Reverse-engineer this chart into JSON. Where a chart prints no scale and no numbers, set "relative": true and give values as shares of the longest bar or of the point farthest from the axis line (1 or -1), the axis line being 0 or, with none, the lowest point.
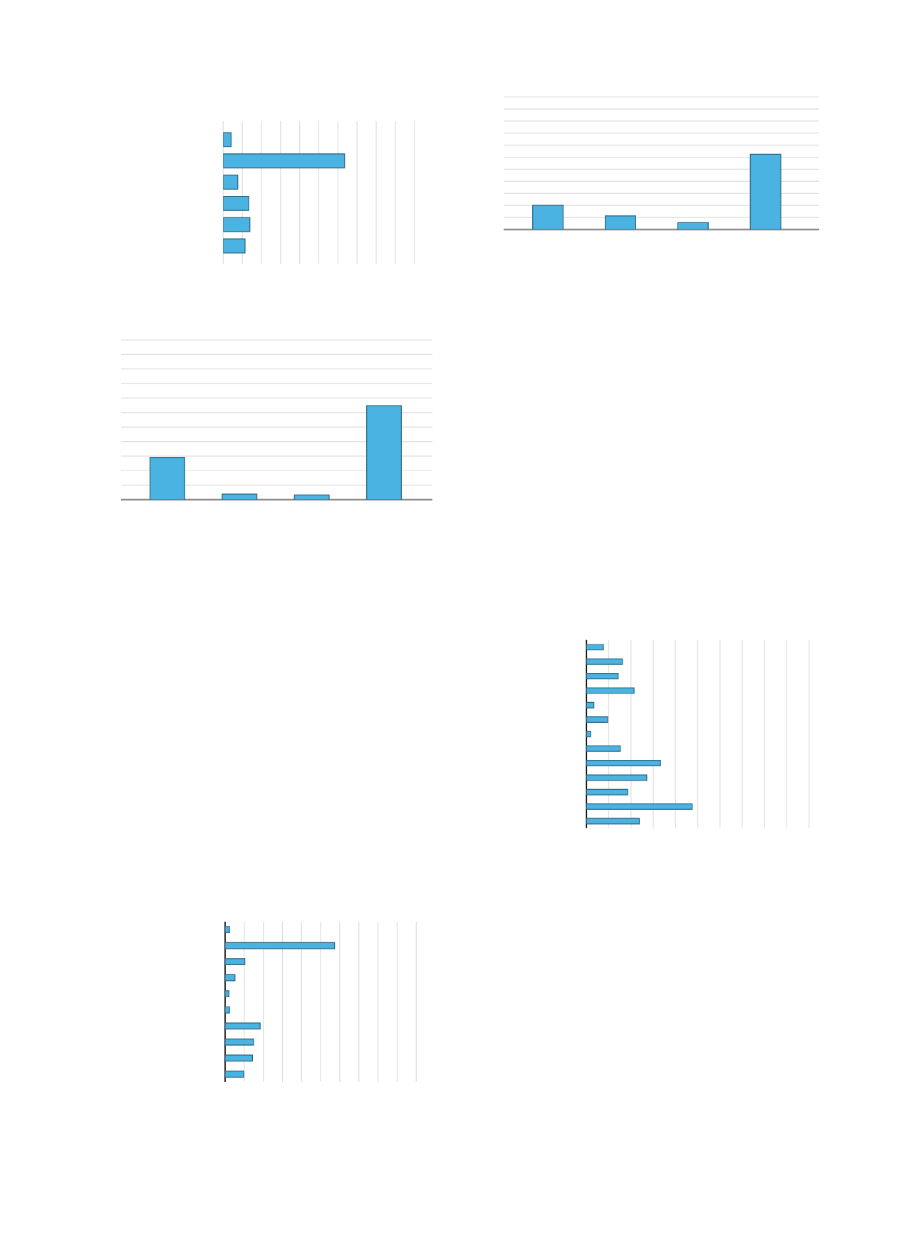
{
  "chart_data": [
    {
      "type": "bar",
      "orientation": "horizontal",
      "relative": true,
      "grid": "x",
      "color": "#4ab3e2",
      "categories": [
        null,
        null,
        null,
        null,
        null,
        null
      ],
      "values": [
        0.065,
        1,
        0.12,
        0.21,
        0.22,
        0.18
      ]
    },
    {
      "type": "bar",
      "relative": true,
      "grid": "y",
      "color": "#4ab3e2",
      "categories": [
        null,
        null,
        null,
        null
      ],
      "values": [
        0.32,
        0.18,
        0.09,
        1
      ]
    },
    {
      "type": "bar",
      "relative": true,
      "grid": "y",
      "color": "#4ab3e2",
      "categories": [
        null,
        null,
        null,
        null
      ],
      "values": [
        0.45,
        0.06,
        0.05,
        1
      ]
    },
    {
      "type": "bar",
      "orientation": "horizontal",
      "relative": true,
      "grid": "x",
      "color": "#4ab3e2",
      "categories": [
        null,
        null,
        null,
        null,
        null,
        null,
        null,
        null,
        null,
        null,
        null,
        null,
        null
      ],
      "values": [
        0.16,
        0.34,
        0.3,
        0.45,
        0.07,
        0.2,
        0.04,
        0.32,
        0.7,
        0.57,
        0.39,
        1,
        0.5
      ]
    },
    {
      "type": "bar",
      "orientation": "horizontal",
      "relative": true,
      "grid": "x",
      "color": "#4ab3e2",
      "categories": [
        null,
        null,
        null,
        null,
        null,
        null,
        null,
        null,
        null,
        null
      ],
      "values": [
        0.04,
        1,
        0.18,
        0.09,
        0.035,
        0.04,
        0.32,
        0.26,
        0.25,
        0.17
      ]
    }
  ]
}
